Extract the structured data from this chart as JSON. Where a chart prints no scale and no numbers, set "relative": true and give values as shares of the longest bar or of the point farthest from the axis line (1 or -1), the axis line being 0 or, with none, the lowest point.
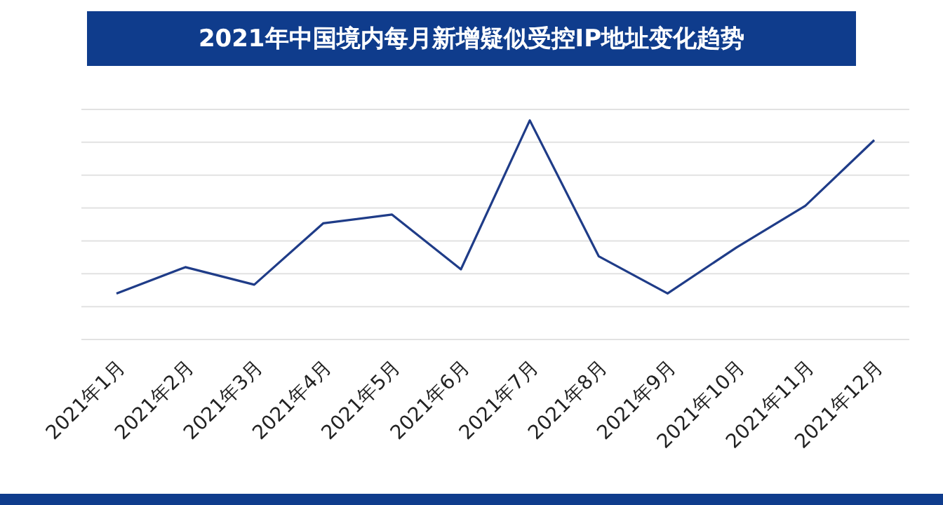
{
  "chart_data": {
    "type": "line",
    "title": "2021年中国境内每月新增疑似受控IP地址变化趋势",
    "relative": true,
    "grid": "y",
    "marker": "none",
    "line_style": "solid",
    "categories": [
      "2021年1月",
      "2021年2月",
      "2021年3月",
      "2021年4月",
      "2021年5月",
      "2021年6月",
      "2021年7月",
      "2021年8月",
      "2021年9月",
      "2021年10月",
      "2021年11月",
      "2021年12月"
    ],
    "series": [
      {
        "color": "#1f3c88",
        "values": [
          0.21,
          0.33,
          0.25,
          0.53,
          0.57,
          0.32,
          1,
          0.38,
          0.21,
          0.42,
          0.61,
          0.91
        ]
      }
    ]
  }
}
